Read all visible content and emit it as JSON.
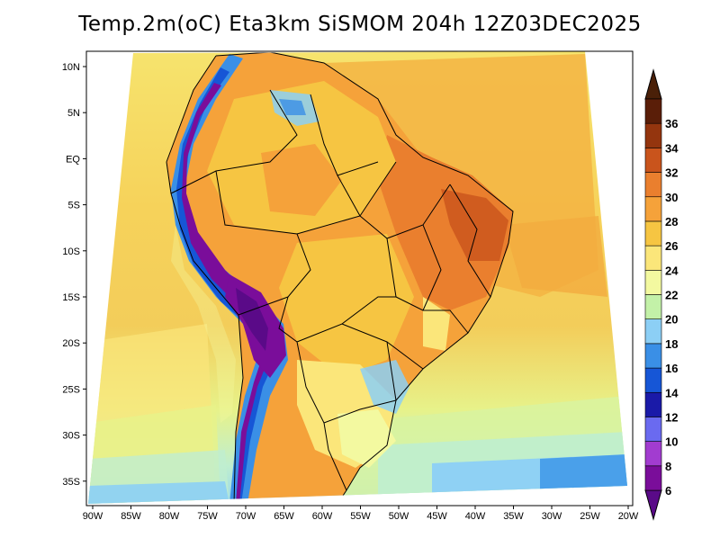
{
  "title": "Temp.2m(oC) Eta3km SiSMOM 204h 12Z03DEC2025",
  "map": {
    "lon_ticks": [
      "90W",
      "85W",
      "80W",
      "75W",
      "70W",
      "65W",
      "60W",
      "55W",
      "50W",
      "45W",
      "40W",
      "35W",
      "30W",
      "25W",
      "20W"
    ],
    "lat_ticks": [
      "10N",
      "5N",
      "EQ",
      "5S",
      "10S",
      "15S",
      "20S",
      "25S",
      "30S",
      "35S"
    ],
    "lon_range": [
      -91,
      -19
    ],
    "lat_range": [
      -39,
      12
    ]
  },
  "colorbar": {
    "labels": [
      "6",
      "8",
      "10",
      "12",
      "14",
      "16",
      "18",
      "20",
      "22",
      "24",
      "26",
      "28",
      "30",
      "32",
      "34",
      "36"
    ],
    "colors": [
      "#7a0d9a",
      "#a23cd0",
      "#6a6af0",
      "#1a1aa8",
      "#1656d6",
      "#3a8fe6",
      "#8ccff5",
      "#c3f1a8",
      "#f3f9a0",
      "#fbe67a",
      "#f6c542",
      "#f5a23a",
      "#ea7f2e",
      "#c9541c",
      "#94350e",
      "#5a1e08"
    ],
    "low_arrow_color": "#5a0a88",
    "high_arrow_color": "#4a2008"
  }
}
